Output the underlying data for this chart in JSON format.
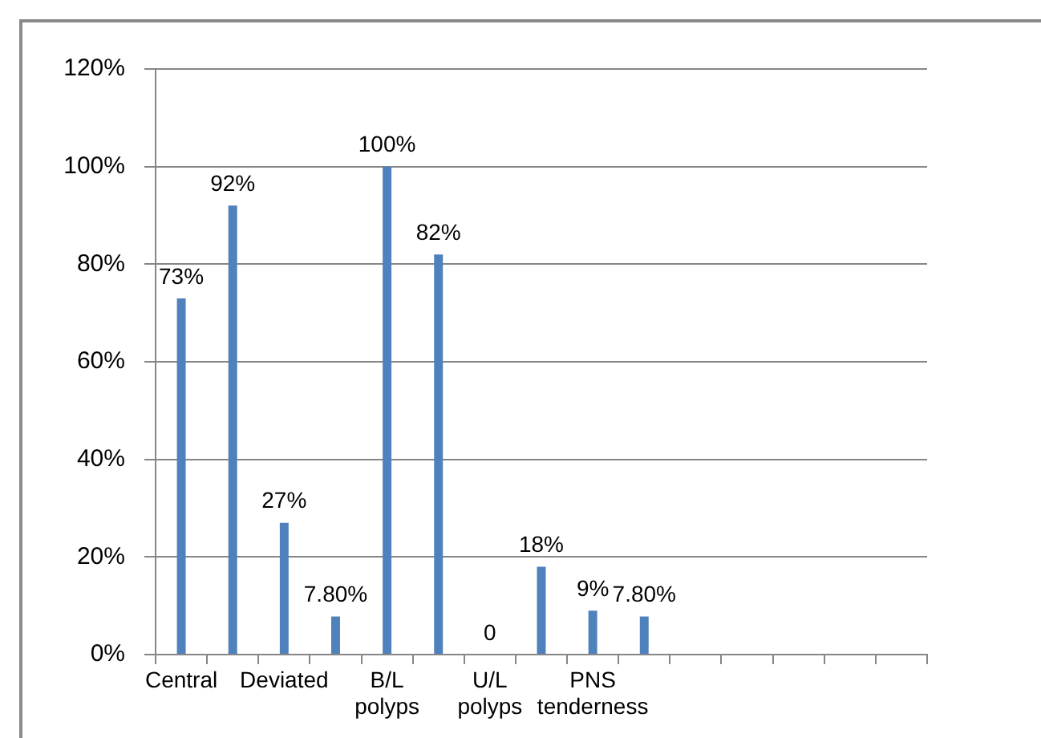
{
  "chart_data": {
    "type": "bar",
    "categories": [
      "Central",
      null,
      "Deviated",
      null,
      "B/L polyps",
      null,
      "U/L polyps",
      null,
      "PNS tenderness",
      null,
      null,
      null,
      null,
      null,
      null
    ],
    "values": [
      73,
      92,
      27,
      7.8,
      100,
      82,
      0,
      18,
      9,
      7.8,
      null,
      null,
      null,
      null,
      null
    ],
    "value_labels": [
      "73%",
      "92%",
      "27%",
      "7.80%",
      "100%",
      "82%",
      "0",
      "18%",
      "9%",
      "7.80%",
      null,
      null,
      null,
      null,
      null
    ],
    "color": "#4f81bd",
    "ylim": [
      0,
      120
    ],
    "yticks": [
      {
        "value": 0,
        "label": "0%"
      },
      {
        "value": 20,
        "label": "20%"
      },
      {
        "value": 40,
        "label": "40%"
      },
      {
        "value": 60,
        "label": "60%"
      },
      {
        "value": 80,
        "label": "80%"
      },
      {
        "value": 100,
        "label": "100%"
      },
      {
        "value": 120,
        "label": "120%"
      }
    ],
    "grid": "y"
  }
}
